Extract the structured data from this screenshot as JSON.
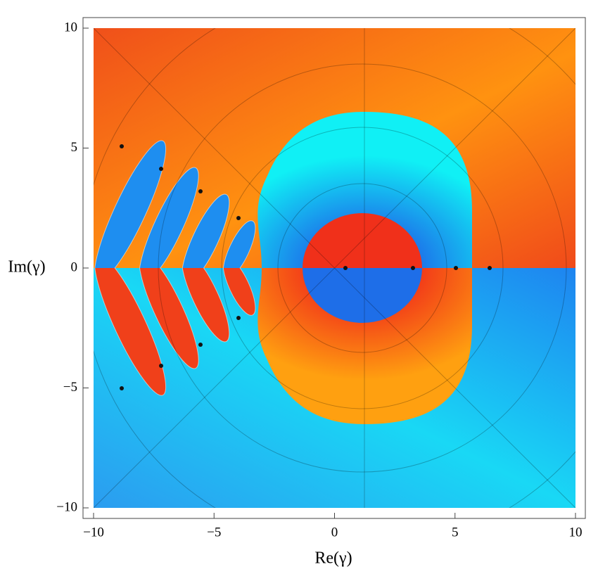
{
  "chart_data": {
    "type": "complex-plot",
    "xlabel": "Re(γ)",
    "ylabel": "Im(γ)",
    "xlim": [
      -10,
      10
    ],
    "ylim": [
      -10,
      10
    ],
    "xticks": [
      {
        "value": -10,
        "label": "−10"
      },
      {
        "value": -5,
        "label": "−5"
      },
      0,
      5,
      10
    ],
    "yticks": [
      {
        "value": -10,
        "label": "−10"
      },
      {
        "value": -5,
        "label": "−5"
      },
      0,
      5,
      10
    ]
  }
}
